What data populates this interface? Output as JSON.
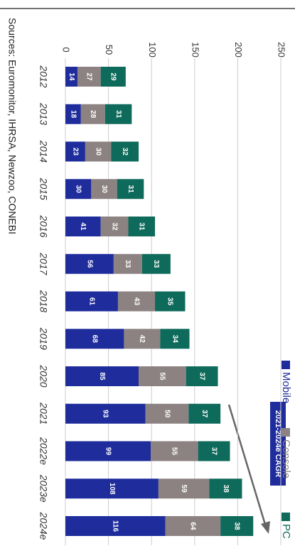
{
  "chart_data": {
    "type": "bar",
    "stacked": true,
    "categories": [
      "2012",
      "2013",
      "2014",
      "2015",
      "2016",
      "2017",
      "2018",
      "2019",
      "2020",
      "2021",
      "2022e",
      "2023e",
      "2024e"
    ],
    "series": [
      {
        "name": "Mobile",
        "color": "#1f2c9c",
        "values": [
          14,
          18,
          23,
          30,
          41,
          56,
          61,
          68,
          85,
          93,
          99,
          108,
          116
        ]
      },
      {
        "name": "Console",
        "color": "#8c8282",
        "values": [
          27,
          28,
          30,
          30,
          32,
          33,
          43,
          42,
          55,
          50,
          55,
          59,
          64
        ]
      },
      {
        "name": "PC",
        "color": "#0e6a5a",
        "values": [
          29,
          31,
          32,
          31,
          31,
          33,
          35,
          34,
          37,
          37,
          37,
          38,
          38
        ]
      }
    ],
    "ylim": [
      0,
      250
    ],
    "yticks": [
      0,
      50,
      100,
      150,
      200,
      250
    ],
    "grid": true,
    "source": "Sources: Euromonitor, IHRSA, Newzoo, CONEBI",
    "annotation": "2021-2024e CAGR"
  }
}
